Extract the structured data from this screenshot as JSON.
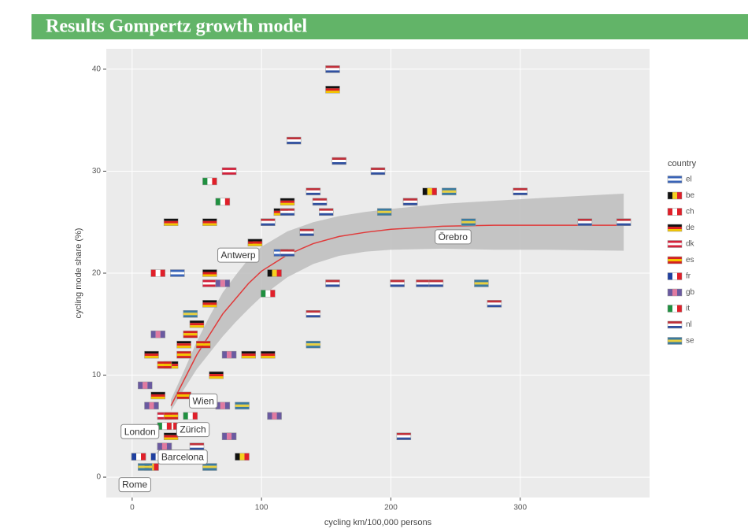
{
  "chart_data": {
    "type": "scatter",
    "title": "Results Gompertz growth model",
    "x_label": "cycling km/100,000 persons",
    "y_label": "cycling mode share (%)",
    "legend_title": "country",
    "legend": "right",
    "grid": true,
    "xlim": [
      -20,
      400
    ],
    "ylim": [
      -2,
      42
    ],
    "xticks": [
      0,
      100,
      200,
      300
    ],
    "yticks": [
      0,
      10,
      20,
      30,
      40
    ],
    "series": [
      {
        "name": "el",
        "stripes": "h",
        "colors": [
          "#3a64b8",
          "#ffffff",
          "#3a64b8"
        ],
        "x": [
          35,
          115
        ],
        "y": [
          20,
          22
        ]
      },
      {
        "name": "be",
        "stripes": "v",
        "colors": [
          "#111111",
          "#f5d020",
          "#e0202a"
        ],
        "x": [
          230,
          95,
          110,
          85,
          15,
          5
        ],
        "y": [
          28,
          23,
          20,
          2,
          1,
          2
        ]
      },
      {
        "name": "ch",
        "stripes": "v",
        "colors": [
          "#e0202a",
          "#ffffff",
          "#e0202a"
        ],
        "x": [
          20
        ],
        "y": [
          20
        ]
      },
      {
        "name": "de",
        "stripes": "h",
        "colors": [
          "#111111",
          "#dd2020",
          "#f2c500"
        ],
        "x": [
          155,
          30,
          60,
          120,
          115,
          95,
          60,
          60,
          90,
          105,
          15,
          30,
          40,
          50,
          20,
          65,
          30
        ],
        "y": [
          38,
          25,
          25,
          27,
          26,
          23,
          20,
          17,
          12,
          12,
          12,
          11,
          13,
          15,
          8,
          10,
          4
        ]
      },
      {
        "name": "dk",
        "stripes": "h",
        "colors": [
          "#d4203a",
          "#ffffff",
          "#d4203a"
        ],
        "x": [
          75,
          215,
          60,
          25,
          25
        ],
        "y": [
          30,
          27,
          19,
          6,
          3
        ]
      },
      {
        "name": "es",
        "stripes": "h",
        "colors": [
          "#d42020",
          "#f5c400",
          "#d42020"
        ],
        "x": [
          45,
          40,
          25,
          40,
          55,
          30,
          40
        ],
        "y": [
          14,
          12,
          11,
          8,
          13,
          6,
          2
        ]
      },
      {
        "name": "fr",
        "stripes": "v",
        "colors": [
          "#2040a0",
          "#ffffff",
          "#e0202a"
        ],
        "x": [
          5,
          20,
          30
        ],
        "y": [
          2,
          2,
          5
        ]
      },
      {
        "name": "gb",
        "stripes": "v",
        "colors": [
          "#6a5aa0",
          "#e07aa0",
          "#6a5aa0"
        ],
        "x": [
          70,
          110,
          75,
          20,
          10,
          15,
          75,
          70,
          25
        ],
        "y": [
          19,
          6,
          4,
          14,
          9,
          7,
          12,
          7,
          3
        ]
      },
      {
        "name": "it",
        "stripes": "v",
        "colors": [
          "#209040",
          "#ffffff",
          "#e0202a"
        ],
        "x": [
          60,
          70,
          105,
          45,
          25
        ],
        "y": [
          29,
          27,
          18,
          6,
          5
        ]
      },
      {
        "name": "nl",
        "stripes": "h",
        "colors": [
          "#c0303a",
          "#ffffff",
          "#3050a0"
        ],
        "x": [
          155,
          125,
          160,
          190,
          140,
          300,
          145,
          150,
          215,
          350,
          380,
          105,
          120,
          135,
          155,
          205,
          225,
          235,
          280,
          140,
          210,
          50,
          120
        ],
        "y": [
          40,
          33,
          31,
          30,
          28,
          28,
          27,
          26,
          27,
          25,
          25,
          25,
          26,
          24,
          19,
          19,
          19,
          19,
          17,
          16,
          4,
          3,
          22
        ]
      },
      {
        "name": "se",
        "stripes": "h",
        "colors": [
          "#3a7aa0",
          "#e8d040",
          "#3a7aa0"
        ],
        "x": [
          245,
          195,
          260,
          85,
          140,
          270,
          60,
          10,
          45
        ],
        "y": [
          28,
          26,
          25,
          7,
          13,
          19,
          1,
          1,
          16
        ]
      }
    ],
    "fit": {
      "color": "#e03a3a",
      "band_color": "#bdbdbd",
      "x": [
        30,
        40,
        50,
        60,
        70,
        80,
        90,
        100,
        120,
        140,
        160,
        180,
        200,
        240,
        280,
        320,
        380
      ],
      "y": [
        7,
        9.5,
        12,
        14,
        16,
        17.5,
        19,
        20.2,
        21.8,
        22.9,
        23.6,
        24,
        24.3,
        24.6,
        24.7,
        24.7,
        24.7
      ],
      "lower": [
        6.5,
        8.6,
        10.6,
        12.2,
        13.8,
        15.2,
        16.5,
        17.7,
        19.6,
        20.9,
        21.7,
        22.1,
        22.3,
        22.4,
        22.3,
        22.3,
        22.2
      ],
      "upper": [
        7.6,
        10.4,
        13.3,
        15.8,
        18.1,
        19.8,
        21.4,
        22.6,
        24.1,
        25,
        25.6,
        26,
        26.3,
        26.8,
        27.1,
        27.4,
        27.8
      ]
    },
    "annotations": [
      {
        "text": "Rome",
        "x": 2,
        "y": -0.8
      },
      {
        "text": "London",
        "x": 6,
        "y": 4.4
      },
      {
        "text": "Zürich",
        "x": 47,
        "y": 4.6
      },
      {
        "text": "Barcelona",
        "x": 39,
        "y": 1.9
      },
      {
        "text": "Wien",
        "x": 55,
        "y": 7.4
      },
      {
        "text": "Antwerp",
        "x": 82,
        "y": 21.7
      },
      {
        "text": "Örebro",
        "x": 248,
        "y": 23.5
      }
    ]
  }
}
